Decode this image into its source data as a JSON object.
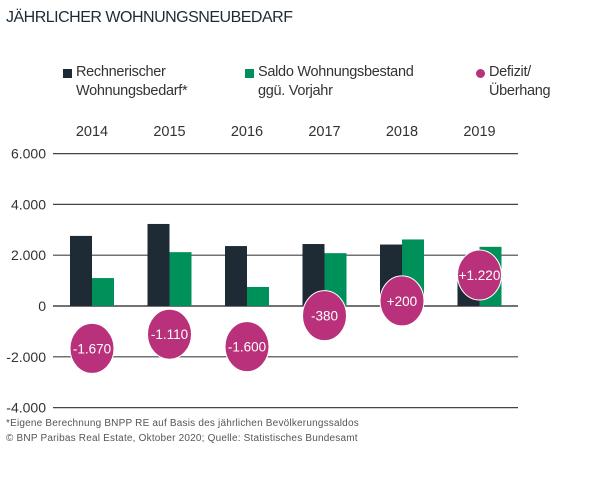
{
  "chart_data": {
    "type": "bar",
    "title": "JÄHRLICHER WOHNUNGSNEUBEDARF",
    "categories": [
      "2014",
      "2015",
      "2016",
      "2017",
      "2018",
      "2019"
    ],
    "series": [
      {
        "name": "Rechnerischer Wohnungsbedarf*",
        "color": "#1e2b35",
        "values": [
          2760,
          3230,
          2360,
          2440,
          2420,
          1110
        ]
      },
      {
        "name": "Saldo Wohnungsbestand ggü. Vorjahr",
        "color": "#00915a",
        "values": [
          1100,
          2120,
          750,
          2080,
          2620,
          2330
        ]
      },
      {
        "name": "Defizit/ Überhang",
        "color": "#b8317a",
        "mark": "circle",
        "values": [
          -1670,
          -1110,
          -1600,
          -380,
          200,
          1220
        ],
        "labels": [
          "-1.670",
          "-1.110",
          "-1.600",
          "-380",
          "+200",
          "+1.220"
        ]
      }
    ],
    "legend": [
      {
        "line1": "Rechnerischer",
        "line2": "Wohnungsbedarf*"
      },
      {
        "line1": "Saldo Wohnungsbestand",
        "line2": "ggü. Vorjahr"
      },
      {
        "line1": "Defizit/",
        "line2": "Überhang"
      }
    ],
    "legend_position": "top",
    "ylim": [
      -4000,
      6000
    ],
    "yticks": [
      6000,
      4000,
      2000,
      0,
      -2000,
      -4000
    ],
    "ytick_labels": [
      "6.000",
      "4.000",
      "2.000",
      "0",
      "-2.000",
      "-4.000"
    ],
    "grid": true,
    "xaxis_position": "top"
  },
  "footnotes": [
    "*Eigene Berechnung BNPP RE auf Basis des jährlichen Bevölkerungssaldos",
    "© BNP Paribas Real Estate, Oktober 2020; Quelle: Statistisches Bundesamt"
  ]
}
